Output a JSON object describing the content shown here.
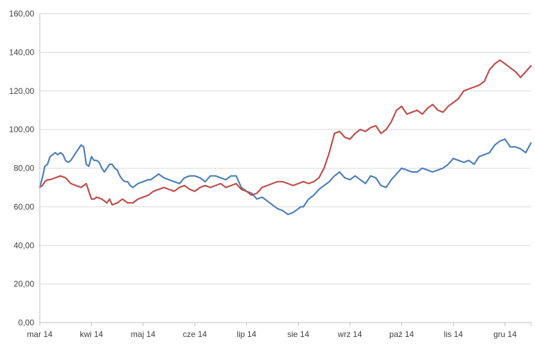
{
  "chart_data": {
    "type": "line",
    "title": "",
    "xlabel": "",
    "ylabel": "",
    "ylim": [
      0,
      160
    ],
    "yticks": [
      "0,00",
      "20,00",
      "40,00",
      "60,00",
      "80,00",
      "100,00",
      "120,00",
      "140,00",
      "160,00"
    ],
    "ytick_values": [
      0,
      20,
      40,
      60,
      80,
      100,
      120,
      140,
      160
    ],
    "xticks": [
      "mar 14",
      "kwi 14",
      "maj 14",
      "cze 14",
      "lip 14",
      "sie 14",
      "wrz 14",
      "paź 14",
      "lis 14",
      "gru 14"
    ],
    "xlim": [
      0,
      9.5
    ],
    "grid": "horizontal",
    "legend": "none",
    "colors": {
      "grid": "#d9d9d9",
      "axis": "#bfbfbf",
      "text": "#404040"
    },
    "series": [
      {
        "color": "#4a7ebb",
        "x": [
          0,
          0.05,
          0.1,
          0.15,
          0.2,
          0.25,
          0.3,
          0.35,
          0.4,
          0.45,
          0.5,
          0.55,
          0.6,
          0.65,
          0.7,
          0.75,
          0.8,
          0.85,
          0.9,
          0.95,
          1.0,
          1.05,
          1.1,
          1.15,
          1.2,
          1.25,
          1.3,
          1.35,
          1.4,
          1.45,
          1.5,
          1.55,
          1.6,
          1.65,
          1.7,
          1.75,
          1.8,
          1.85,
          1.9,
          2.0,
          2.1,
          2.15,
          2.2,
          2.3,
          2.4,
          2.5,
          2.6,
          2.7,
          2.8,
          2.9,
          3.0,
          3.1,
          3.2,
          3.3,
          3.4,
          3.5,
          3.6,
          3.7,
          3.8,
          3.9,
          4.0,
          4.1,
          4.2,
          4.3,
          4.4,
          4.5,
          4.6,
          4.7,
          4.8,
          4.9,
          5.0,
          5.05,
          5.1,
          5.2,
          5.3,
          5.4,
          5.5,
          5.6,
          5.7,
          5.8,
          5.9,
          6.0,
          6.1,
          6.2,
          6.3,
          6.4,
          6.5,
          6.6,
          6.7,
          6.8,
          6.9,
          7.0,
          7.1,
          7.2,
          7.3,
          7.4,
          7.5,
          7.6,
          7.7,
          7.8,
          7.9,
          8.0,
          8.1,
          8.2,
          8.3,
          8.4,
          8.5,
          8.6,
          8.7,
          8.8,
          8.9,
          9.0,
          9.1,
          9.2,
          9.3,
          9.4,
          9.5
        ],
        "y": [
          70,
          75,
          81,
          82,
          86,
          87,
          88,
          87,
          88,
          87,
          84,
          83,
          84,
          86,
          88,
          90,
          92,
          91,
          82,
          81,
          86,
          84,
          84,
          83,
          80,
          78,
          80,
          82,
          82,
          80,
          79,
          76,
          74,
          73,
          73,
          71,
          70,
          71,
          72,
          73,
          74,
          74,
          75,
          77,
          75,
          74,
          73,
          72,
          75,
          76,
          76,
          75,
          73,
          76,
          76,
          75,
          74,
          76,
          76,
          70,
          68,
          67,
          64,
          65,
          63,
          61,
          59,
          58,
          56,
          57,
          59,
          60,
          60,
          64,
          66,
          69,
          71,
          73,
          76,
          78,
          75,
          74,
          76,
          74,
          72,
          76,
          75,
          71,
          70,
          74,
          77,
          80,
          79,
          78,
          78,
          80,
          79,
          78,
          79,
          80,
          82,
          85,
          84,
          83,
          84,
          82,
          86,
          87,
          88,
          92,
          94,
          95,
          91,
          91,
          90,
          88,
          93
        ]
      },
      {
        "color": "#be4b48",
        "x": [
          0,
          0.05,
          0.1,
          0.15,
          0.2,
          0.3,
          0.4,
          0.5,
          0.6,
          0.7,
          0.8,
          0.85,
          0.9,
          1.0,
          1.05,
          1.1,
          1.2,
          1.3,
          1.35,
          1.4,
          1.5,
          1.6,
          1.7,
          1.8,
          1.9,
          2.0,
          2.1,
          2.2,
          2.3,
          2.4,
          2.5,
          2.6,
          2.7,
          2.8,
          2.9,
          3.0,
          3.1,
          3.2,
          3.3,
          3.4,
          3.5,
          3.6,
          3.7,
          3.8,
          3.9,
          4.0,
          4.1,
          4.2,
          4.3,
          4.4,
          4.5,
          4.6,
          4.7,
          4.8,
          4.9,
          5.0,
          5.1,
          5.2,
          5.3,
          5.4,
          5.5,
          5.6,
          5.7,
          5.8,
          5.9,
          6.0,
          6.1,
          6.2,
          6.3,
          6.4,
          6.5,
          6.6,
          6.7,
          6.8,
          6.9,
          7.0,
          7.1,
          7.2,
          7.3,
          7.4,
          7.5,
          7.6,
          7.7,
          7.8,
          7.9,
          8.0,
          8.1,
          8.2,
          8.3,
          8.4,
          8.5,
          8.6,
          8.7,
          8.8,
          8.9,
          9.0,
          9.1,
          9.2,
          9.3,
          9.4,
          9.5
        ],
        "y": [
          70,
          71,
          73,
          74,
          74,
          75,
          76,
          75,
          72,
          71,
          70,
          71,
          72,
          64,
          64,
          65,
          64,
          62,
          64,
          61,
          62,
          64,
          62,
          62,
          64,
          65,
          66,
          68,
          69,
          70,
          69,
          68,
          70,
          71,
          69,
          68,
          70,
          71,
          70,
          71,
          72,
          70,
          71,
          72,
          69,
          68,
          66,
          67,
          70,
          71,
          72,
          73,
          73,
          72,
          71,
          72,
          73,
          72,
          73,
          75,
          80,
          88,
          98,
          99,
          96,
          95,
          98,
          100,
          99,
          101,
          102,
          98,
          100,
          104,
          110,
          112,
          108,
          109,
          110,
          108,
          111,
          113,
          110,
          109,
          112,
          114,
          116,
          120,
          121,
          122,
          123,
          125,
          131,
          134,
          136,
          134,
          132,
          130,
          127,
          130,
          133
        ]
      }
    ]
  }
}
